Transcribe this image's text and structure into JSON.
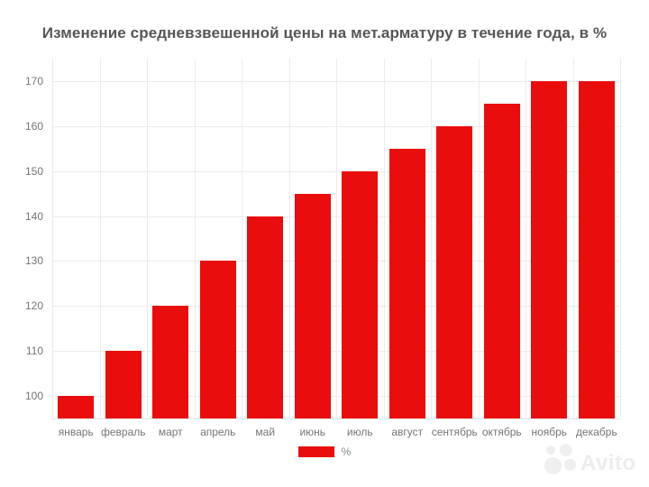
{
  "chart_data": {
    "type": "bar",
    "title": "Изменение средневзвешенной цены на мет.арматуру в течение года, в %",
    "categories": [
      "январь",
      "февраль",
      "март",
      "апрель",
      "май",
      "июнь",
      "июль",
      "август",
      "сентябрь",
      "октябрь",
      "ноябрь",
      "декабрь"
    ],
    "series": [
      {
        "name": "%",
        "values": [
          100,
          110,
          120,
          130,
          140,
          145,
          150,
          155,
          160,
          165,
          170,
          170
        ]
      }
    ],
    "ylim": [
      95,
      175
    ],
    "yticks": [
      100,
      110,
      120,
      130,
      140,
      150,
      160,
      170
    ],
    "grid": true,
    "legend_position": "bottom",
    "bar_color": "#e90d0d",
    "grid_color": "#ececec"
  },
  "watermark": {
    "text": "Avito"
  }
}
